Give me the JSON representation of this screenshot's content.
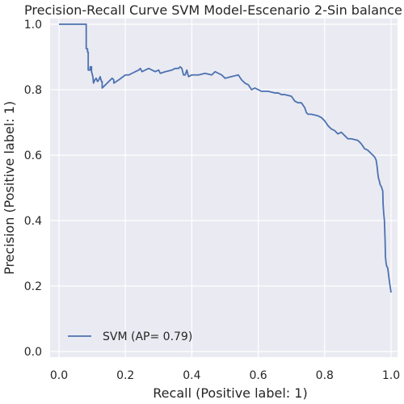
{
  "chart_data": {
    "type": "line",
    "title": "Precision-Recall Curve SVM Model-Escenario 2-Sin balance",
    "xlabel": "Recall (Positive label: 1)",
    "ylabel": "Precision (Positive label: 1)",
    "xlim": [
      0.0,
      1.0
    ],
    "ylim": [
      0.0,
      1.0
    ],
    "xticks": [
      "0.0",
      "0.2",
      "0.4",
      "0.6",
      "0.8",
      "1.0"
    ],
    "yticks": [
      "0.0",
      "0.2",
      "0.4",
      "0.6",
      "0.8",
      "1.0"
    ],
    "grid": true,
    "legend_position": "lower-left",
    "series": [
      {
        "name": "SVM (AP= 0.79)",
        "color": "#4c72b0",
        "points": [
          [
            0.0,
            1.0
          ],
          [
            0.082,
            1.0
          ],
          [
            0.082,
            0.925
          ],
          [
            0.086,
            0.925
          ],
          [
            0.086,
            0.915
          ],
          [
            0.088,
            0.915
          ],
          [
            0.088,
            0.86
          ],
          [
            0.094,
            0.86
          ],
          [
            0.094,
            0.87
          ],
          [
            0.098,
            0.87
          ],
          [
            0.098,
            0.855
          ],
          [
            0.102,
            0.84
          ],
          [
            0.104,
            0.82
          ],
          [
            0.108,
            0.83
          ],
          [
            0.112,
            0.835
          ],
          [
            0.116,
            0.825
          ],
          [
            0.12,
            0.83
          ],
          [
            0.124,
            0.84
          ],
          [
            0.128,
            0.825
          ],
          [
            0.13,
            0.825
          ],
          [
            0.13,
            0.805
          ],
          [
            0.14,
            0.815
          ],
          [
            0.15,
            0.825
          ],
          [
            0.16,
            0.835
          ],
          [
            0.165,
            0.83
          ],
          [
            0.165,
            0.82
          ],
          [
            0.18,
            0.83
          ],
          [
            0.2,
            0.845
          ],
          [
            0.21,
            0.845
          ],
          [
            0.22,
            0.85
          ],
          [
            0.23,
            0.855
          ],
          [
            0.24,
            0.86
          ],
          [
            0.245,
            0.865
          ],
          [
            0.25,
            0.855
          ],
          [
            0.26,
            0.86
          ],
          [
            0.27,
            0.865
          ],
          [
            0.28,
            0.86
          ],
          [
            0.29,
            0.855
          ],
          [
            0.3,
            0.86
          ],
          [
            0.305,
            0.85
          ],
          [
            0.32,
            0.855
          ],
          [
            0.34,
            0.86
          ],
          [
            0.35,
            0.865
          ],
          [
            0.36,
            0.865
          ],
          [
            0.365,
            0.87
          ],
          [
            0.37,
            0.865
          ],
          [
            0.375,
            0.845
          ],
          [
            0.38,
            0.845
          ],
          [
            0.385,
            0.86
          ],
          [
            0.39,
            0.84
          ],
          [
            0.4,
            0.845
          ],
          [
            0.42,
            0.845
          ],
          [
            0.44,
            0.85
          ],
          [
            0.46,
            0.845
          ],
          [
            0.47,
            0.855
          ],
          [
            0.48,
            0.85
          ],
          [
            0.49,
            0.845
          ],
          [
            0.5,
            0.835
          ],
          [
            0.52,
            0.84
          ],
          [
            0.54,
            0.845
          ],
          [
            0.55,
            0.83
          ],
          [
            0.56,
            0.82
          ],
          [
            0.57,
            0.815
          ],
          [
            0.58,
            0.8
          ],
          [
            0.59,
            0.805
          ],
          [
            0.6,
            0.8
          ],
          [
            0.61,
            0.795
          ],
          [
            0.63,
            0.795
          ],
          [
            0.65,
            0.79
          ],
          [
            0.66,
            0.79
          ],
          [
            0.67,
            0.785
          ],
          [
            0.68,
            0.785
          ],
          [
            0.7,
            0.78
          ],
          [
            0.71,
            0.765
          ],
          [
            0.72,
            0.76
          ],
          [
            0.73,
            0.76
          ],
          [
            0.74,
            0.745
          ],
          [
            0.745,
            0.73
          ],
          [
            0.75,
            0.725
          ],
          [
            0.76,
            0.725
          ],
          [
            0.78,
            0.72
          ],
          [
            0.79,
            0.715
          ],
          [
            0.8,
            0.705
          ],
          [
            0.81,
            0.69
          ],
          [
            0.82,
            0.68
          ],
          [
            0.83,
            0.675
          ],
          [
            0.84,
            0.665
          ],
          [
            0.85,
            0.67
          ],
          [
            0.86,
            0.66
          ],
          [
            0.87,
            0.65
          ],
          [
            0.88,
            0.65
          ],
          [
            0.9,
            0.645
          ],
          [
            0.91,
            0.635
          ],
          [
            0.92,
            0.62
          ],
          [
            0.93,
            0.615
          ],
          [
            0.94,
            0.605
          ],
          [
            0.95,
            0.595
          ],
          [
            0.955,
            0.585
          ],
          [
            0.958,
            0.565
          ],
          [
            0.96,
            0.545
          ],
          [
            0.962,
            0.53
          ],
          [
            0.965,
            0.52
          ],
          [
            0.967,
            0.51
          ],
          [
            0.97,
            0.505
          ],
          [
            0.972,
            0.5
          ],
          [
            0.975,
            0.49
          ],
          [
            0.976,
            0.45
          ],
          [
            0.978,
            0.42
          ],
          [
            0.98,
            0.4
          ],
          [
            0.982,
            0.34
          ],
          [
            0.983,
            0.29
          ],
          [
            0.985,
            0.27
          ],
          [
            0.987,
            0.26
          ],
          [
            0.99,
            0.255
          ],
          [
            0.993,
            0.23
          ],
          [
            0.995,
            0.215
          ],
          [
            0.997,
            0.2
          ],
          [
            1.0,
            0.18
          ]
        ]
      }
    ]
  }
}
